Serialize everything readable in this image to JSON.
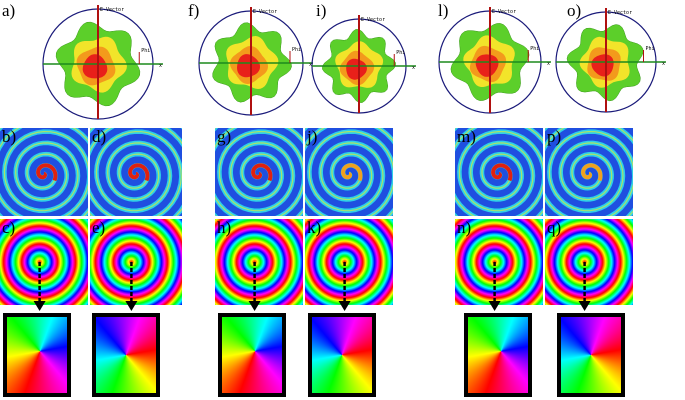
{
  "panels": [
    {
      "label": "a)"
    },
    {
      "label": "f)"
    },
    {
      "label": "i)"
    },
    {
      "label": "l)"
    },
    {
      "label": "o)"
    },
    {
      "label": "b)"
    },
    {
      "label": "d)"
    },
    {
      "label": "g)"
    },
    {
      "label": "j)"
    },
    {
      "label": "m)"
    },
    {
      "label": "p)"
    },
    {
      "label": "c)"
    },
    {
      "label": "e)"
    },
    {
      "label": "h)"
    },
    {
      "label": "k)"
    },
    {
      "label": "n)"
    },
    {
      "label": "q)"
    }
  ],
  "polar_labels": {
    "vector": "E-Vector",
    "phi": "Phi",
    "x": "x"
  }
}
